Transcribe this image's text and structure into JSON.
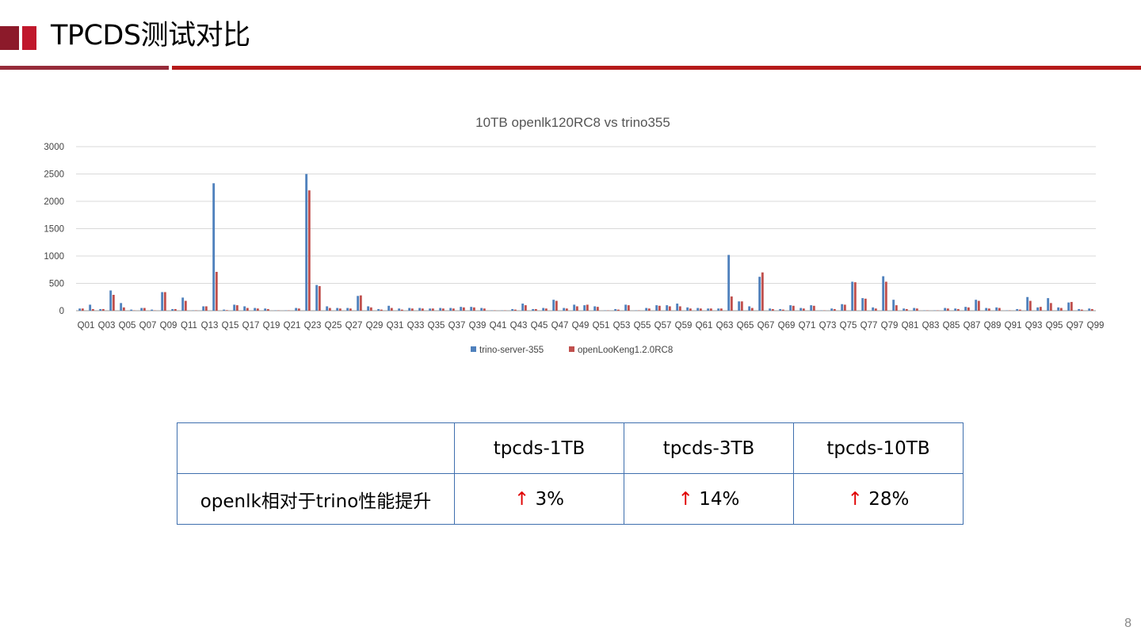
{
  "slide": {
    "title": "TPCDS测试对比",
    "page_number": "8"
  },
  "colors": {
    "accent_dark": "#8c1a2a",
    "accent": "#c0182c",
    "rule_right": "#b51a1a",
    "table_border": "#3f6fae",
    "arrow": "#e00000"
  },
  "chart_data": {
    "type": "bar",
    "title": "10TB openlk120RC8 vs trino355",
    "xlabel": "",
    "ylabel": "",
    "ylim": [
      0,
      3000
    ],
    "yticks": [
      0,
      500,
      1000,
      1500,
      2000,
      2500,
      3000
    ],
    "grid": true,
    "legend_position": "bottom",
    "categories": [
      "Q01",
      "Q02",
      "Q03",
      "Q04",
      "Q05",
      "Q06",
      "Q07",
      "Q08",
      "Q09",
      "Q10",
      "Q11",
      "Q12",
      "Q13",
      "Q14",
      "Q15",
      "Q16",
      "Q17",
      "Q18",
      "Q19",
      "Q20",
      "Q21",
      "Q22",
      "Q23",
      "Q24",
      "Q25",
      "Q26",
      "Q27",
      "Q28",
      "Q29",
      "Q30",
      "Q31",
      "Q32",
      "Q33",
      "Q34",
      "Q35",
      "Q36",
      "Q37",
      "Q38",
      "Q39",
      "Q40",
      "Q41",
      "Q42",
      "Q43",
      "Q44",
      "Q45",
      "Q46",
      "Q47",
      "Q48",
      "Q49",
      "Q50",
      "Q51",
      "Q52",
      "Q53",
      "Q54",
      "Q55",
      "Q56",
      "Q57",
      "Q58",
      "Q59",
      "Q60",
      "Q61",
      "Q62",
      "Q63",
      "Q64",
      "Q65",
      "Q66",
      "Q67",
      "Q68",
      "Q69",
      "Q70",
      "Q71",
      "Q72",
      "Q73",
      "Q74",
      "Q75",
      "Q76",
      "Q77",
      "Q78",
      "Q79",
      "Q80",
      "Q81",
      "Q82",
      "Q83",
      "Q84",
      "Q85",
      "Q86",
      "Q87",
      "Q88",
      "Q89",
      "Q90",
      "Q91",
      "Q92",
      "Q93",
      "Q94",
      "Q95",
      "Q96",
      "Q97",
      "Q98",
      "Q99"
    ],
    "tick_labels": [
      "Q01",
      "Q03",
      "Q05",
      "Q07",
      "Q09",
      "Q11",
      "Q13",
      "Q15",
      "Q17",
      "Q19",
      "Q21",
      "Q23",
      "Q25",
      "Q27",
      "Q29",
      "Q31",
      "Q33",
      "Q35",
      "Q37",
      "Q39",
      "Q41",
      "Q43",
      "Q45",
      "Q47",
      "Q49",
      "Q51",
      "Q53",
      "Q55",
      "Q57",
      "Q59",
      "Q61",
      "Q63",
      "Q65",
      "Q67",
      "Q69",
      "Q71",
      "Q73",
      "Q75",
      "Q77",
      "Q79",
      "Q81",
      "Q83",
      "Q85",
      "Q87",
      "Q89",
      "Q91",
      "Q93",
      "Q95",
      "Q97",
      "Q99"
    ],
    "series": [
      {
        "name": "trino-server-355",
        "color": "#4f81bd",
        "values": [
          40,
          110,
          30,
          370,
          140,
          20,
          50,
          20,
          340,
          30,
          240,
          5,
          80,
          2330,
          20,
          110,
          80,
          50,
          40,
          5,
          5,
          50,
          2500,
          470,
          80,
          50,
          50,
          270,
          80,
          30,
          90,
          40,
          50,
          50,
          40,
          50,
          50,
          70,
          70,
          50,
          5,
          5,
          30,
          130,
          30,
          50,
          200,
          50,
          110,
          100,
          80,
          5,
          30,
          110,
          5,
          50,
          100,
          100,
          130,
          60,
          50,
          40,
          40,
          1020,
          170,
          80,
          620,
          40,
          30,
          100,
          50,
          100,
          5,
          40,
          120,
          530,
          230,
          60,
          630,
          200,
          40,
          50,
          5,
          5,
          50,
          40,
          70,
          200,
          50,
          60,
          5,
          30,
          250,
          60,
          230,
          60,
          150,
          30,
          40
        ],
        "note": "values estimated"
      },
      {
        "name": "openLooKeng1.2.0RC8",
        "color": "#c0504d",
        "values": [
          40,
          30,
          30,
          290,
          60,
          5,
          50,
          5,
          340,
          30,
          180,
          5,
          80,
          710,
          10,
          100,
          50,
          40,
          30,
          5,
          5,
          40,
          2200,
          450,
          50,
          40,
          40,
          280,
          60,
          20,
          50,
          20,
          40,
          40,
          40,
          40,
          40,
          60,
          60,
          40,
          5,
          5,
          20,
          100,
          30,
          40,
          180,
          40,
          80,
          110,
          70,
          5,
          20,
          100,
          5,
          40,
          90,
          80,
          80,
          40,
          40,
          40,
          40,
          260,
          170,
          50,
          700,
          30,
          20,
          90,
          40,
          90,
          5,
          30,
          110,
          520,
          220,
          40,
          530,
          100,
          30,
          40,
          5,
          5,
          40,
          30,
          60,
          180,
          40,
          50,
          5,
          20,
          180,
          70,
          140,
          50,
          160,
          20,
          30
        ]
      }
    ]
  },
  "perf_table": {
    "headers": [
      "",
      "tpcds-1TB",
      "tpcds-3TB",
      "tpcds-10TB"
    ],
    "row_label": "openlk相对于trino性能提升",
    "arrow": "↑",
    "values": [
      "3%",
      "14%",
      "28%"
    ]
  }
}
